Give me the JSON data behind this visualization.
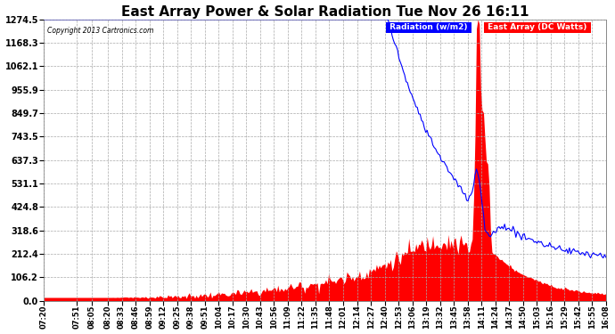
{
  "title": "East Array Power & Solar Radiation Tue Nov 26 16:11",
  "copyright": "Copyright 2013 Cartronics.com",
  "legend_radiation": "Radiation (w/m2)",
  "legend_east": "East Array (DC Watts)",
  "legend_radiation_bg": "#0000ff",
  "legend_east_bg": "#ff0000",
  "y_min": 0.0,
  "y_max": 1274.5,
  "y_ticks": [
    0.0,
    106.2,
    212.4,
    318.6,
    424.8,
    531.1,
    637.3,
    743.5,
    849.7,
    955.9,
    1062.1,
    1168.3,
    1274.5
  ],
  "background_color": "#ffffff",
  "grid_color": "#aaaaaa",
  "red_fill": "#ff0000",
  "blue_line": "#0000ff",
  "title_fontsize": 11,
  "x_labels": [
    "07:20",
    "07:51",
    "08:05",
    "08:20",
    "08:33",
    "08:46",
    "08:59",
    "09:12",
    "09:25",
    "09:38",
    "09:51",
    "10:04",
    "10:17",
    "10:30",
    "10:43",
    "10:56",
    "11:09",
    "11:22",
    "11:35",
    "11:48",
    "12:01",
    "12:14",
    "12:27",
    "12:40",
    "12:53",
    "13:06",
    "13:19",
    "13:32",
    "13:45",
    "13:58",
    "14:11",
    "14:24",
    "14:37",
    "14:50",
    "15:03",
    "15:16",
    "15:29",
    "15:42",
    "15:55",
    "16:08"
  ]
}
